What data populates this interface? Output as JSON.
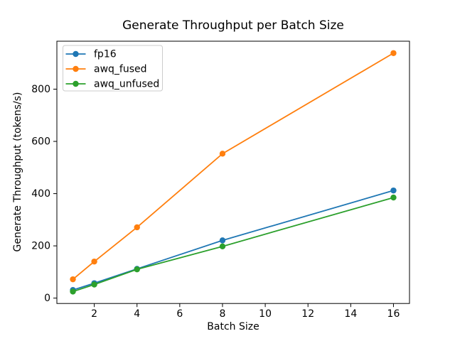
{
  "figure": {
    "background": "#ffffff",
    "text_color": "#000000",
    "spine_color": "#000000"
  },
  "chart_data": {
    "type": "line",
    "title": "Generate Throughput per Batch Size",
    "xlabel": "Batch Size",
    "ylabel": "Generate Throughput (tokens/s)",
    "x": [
      1,
      2,
      4,
      8,
      16
    ],
    "series": [
      {
        "name": "fp16",
        "color": "#1f77b4",
        "marker": "circle",
        "values": [
          31,
          57,
          112,
          221,
          412
        ]
      },
      {
        "name": "awq_fused",
        "color": "#ff7f0e",
        "marker": "circle",
        "values": [
          72,
          140,
          271,
          553,
          938
        ]
      },
      {
        "name": "awq_unfused",
        "color": "#2ca02c",
        "marker": "circle",
        "values": [
          25,
          52,
          110,
          198,
          385
        ]
      }
    ],
    "xticks": [
      2,
      4,
      6,
      8,
      10,
      12,
      14,
      16
    ],
    "yticks": [
      0,
      200,
      400,
      600,
      800
    ],
    "xlim": [
      0.25,
      16.75
    ],
    "ylim": [
      -20.65,
      983.65
    ],
    "grid": false,
    "legend": {
      "position": "upper-left",
      "entries": [
        "fp16",
        "awq_fused",
        "awq_unfused"
      ]
    }
  }
}
